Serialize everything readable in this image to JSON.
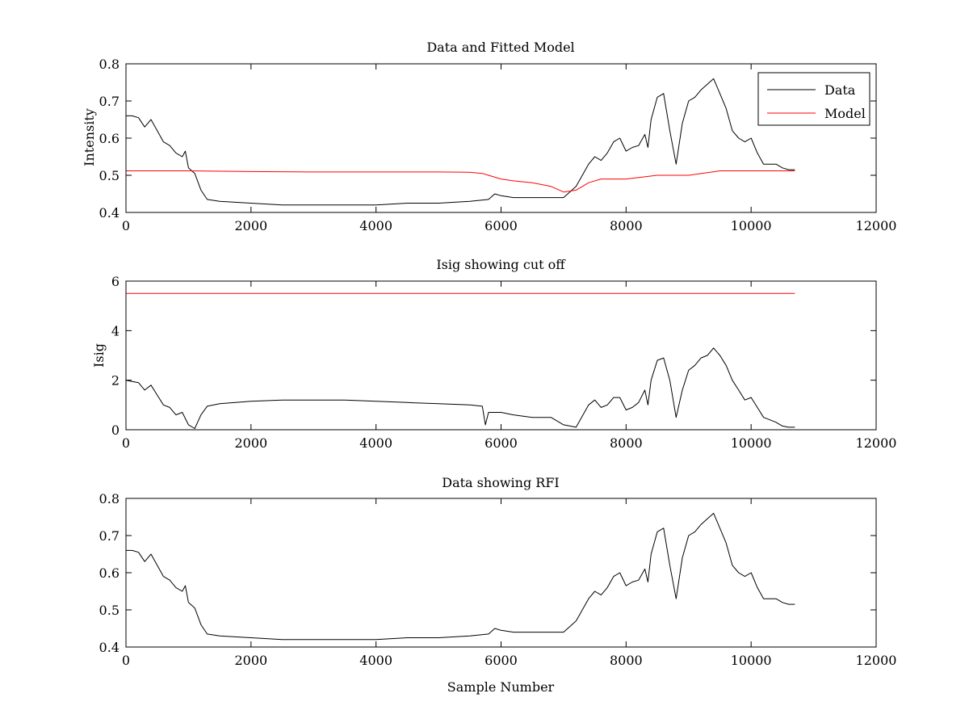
{
  "chart_data": [
    {
      "type": "line",
      "title": "Data and Fitted Model",
      "xlabel": "",
      "ylabel": "Intensity",
      "xlim": [
        0,
        12000
      ],
      "ylim": [
        0.4,
        0.8
      ],
      "xticks": [
        0,
        2000,
        4000,
        6000,
        8000,
        10000,
        12000
      ],
      "yticks": [
        0.4,
        0.5,
        0.6,
        0.7,
        0.8
      ],
      "xtick_labels": [
        "0",
        "2000",
        "4000",
        "6000",
        "8000",
        "10000",
        "12000"
      ],
      "ytick_labels": [
        "0.4",
        "0.5",
        "0.6",
        "0.7",
        "0.8"
      ],
      "legend": {
        "placement": "top-right",
        "entries": [
          "Data",
          "Model"
        ]
      },
      "series": [
        {
          "name": "Data",
          "color": "#000000",
          "x": [
            0,
            100,
            200,
            300,
            400,
            500,
            600,
            700,
            800,
            900,
            950,
            1000,
            1100,
            1200,
            1300,
            1500,
            2000,
            2500,
            3000,
            3500,
            4000,
            4500,
            5000,
            5500,
            5800,
            5900,
            6000,
            6200,
            6500,
            7000,
            7200,
            7400,
            7500,
            7600,
            7700,
            7800,
            7900,
            8000,
            8100,
            8200,
            8300,
            8350,
            8400,
            8500,
            8600,
            8700,
            8800,
            8900,
            9000,
            9100,
            9200,
            9300,
            9400,
            9500,
            9600,
            9700,
            9800,
            9900,
            10000,
            10100,
            10200,
            10300,
            10400,
            10500,
            10600,
            10700
          ],
          "y": [
            0.66,
            0.66,
            0.655,
            0.63,
            0.65,
            0.62,
            0.59,
            0.58,
            0.56,
            0.55,
            0.565,
            0.52,
            0.505,
            0.46,
            0.435,
            0.43,
            0.425,
            0.42,
            0.42,
            0.42,
            0.42,
            0.425,
            0.425,
            0.43,
            0.435,
            0.45,
            0.445,
            0.44,
            0.44,
            0.44,
            0.47,
            0.53,
            0.55,
            0.54,
            0.56,
            0.59,
            0.6,
            0.565,
            0.575,
            0.58,
            0.61,
            0.575,
            0.65,
            0.71,
            0.72,
            0.62,
            0.53,
            0.64,
            0.7,
            0.71,
            0.73,
            0.745,
            0.76,
            0.72,
            0.68,
            0.62,
            0.6,
            0.59,
            0.6,
            0.56,
            0.53,
            0.53,
            0.53,
            0.52,
            0.515,
            0.515
          ]
        },
        {
          "name": "Model",
          "color": "#ff0000",
          "x": [
            0,
            1000,
            2000,
            3000,
            4000,
            4800,
            5000,
            5500,
            5700,
            5800,
            6000,
            6200,
            6500,
            6800,
            7000,
            7200,
            7400,
            7600,
            8000,
            8500,
            9000,
            9500,
            10000,
            10700
          ],
          "y": [
            0.512,
            0.512,
            0.51,
            0.509,
            0.509,
            0.509,
            0.509,
            0.508,
            0.505,
            0.5,
            0.49,
            0.485,
            0.48,
            0.47,
            0.455,
            0.46,
            0.48,
            0.49,
            0.49,
            0.5,
            0.5,
            0.512,
            0.512,
            0.512
          ]
        }
      ]
    },
    {
      "type": "line",
      "title": "Isig showing cut off",
      "xlabel": "",
      "ylabel": "Isig",
      "xlim": [
        0,
        12000
      ],
      "ylim": [
        0,
        6
      ],
      "xticks": [
        0,
        2000,
        4000,
        6000,
        8000,
        10000,
        12000
      ],
      "yticks": [
        0,
        2,
        4,
        6
      ],
      "xtick_labels": [
        "0",
        "2000",
        "4000",
        "6000",
        "8000",
        "10000",
        "12000"
      ],
      "ytick_labels": [
        "0",
        "2",
        "4",
        "6"
      ],
      "series": [
        {
          "color": "#000000",
          "x": [
            0,
            100,
            200,
            300,
            400,
            500,
            600,
            700,
            800,
            900,
            1000,
            1100,
            1200,
            1300,
            1500,
            2000,
            2500,
            3000,
            3500,
            4000,
            4500,
            5000,
            5500,
            5700,
            5750,
            5800,
            6000,
            6200,
            6500,
            6800,
            7000,
            7100,
            7200,
            7400,
            7500,
            7600,
            7700,
            7800,
            7900,
            8000,
            8100,
            8200,
            8300,
            8350,
            8400,
            8500,
            8600,
            8700,
            8800,
            8900,
            9000,
            9100,
            9200,
            9300,
            9400,
            9500,
            9600,
            9700,
            9800,
            9900,
            10000,
            10100,
            10200,
            10300,
            10400,
            10500,
            10600,
            10700
          ],
          "y": [
            2.0,
            1.95,
            1.9,
            1.6,
            1.8,
            1.4,
            1.0,
            0.9,
            0.6,
            0.7,
            0.2,
            0.05,
            0.6,
            0.95,
            1.05,
            1.15,
            1.2,
            1.2,
            1.2,
            1.15,
            1.1,
            1.05,
            1.0,
            0.95,
            0.2,
            0.7,
            0.7,
            0.6,
            0.5,
            0.5,
            0.2,
            0.15,
            0.1,
            1.0,
            1.2,
            0.9,
            1.0,
            1.3,
            1.3,
            0.8,
            0.9,
            1.1,
            1.6,
            1.0,
            2.0,
            2.8,
            2.9,
            2.0,
            0.5,
            1.6,
            2.4,
            2.6,
            2.9,
            3.0,
            3.3,
            3.0,
            2.6,
            2.0,
            1.6,
            1.2,
            1.3,
            0.9,
            0.5,
            0.4,
            0.3,
            0.15,
            0.1,
            0.1
          ]
        },
        {
          "color": "#ff0000",
          "x": [
            0,
            10700
          ],
          "y": [
            5.5,
            5.5
          ]
        }
      ]
    },
    {
      "type": "line",
      "title": "Data showing RFI",
      "xlabel": "Sample Number",
      "ylabel": "",
      "xlim": [
        0,
        12000
      ],
      "ylim": [
        0.4,
        0.8
      ],
      "xticks": [
        0,
        2000,
        4000,
        6000,
        8000,
        10000,
        12000
      ],
      "yticks": [
        0.4,
        0.5,
        0.6,
        0.7,
        0.8
      ],
      "xtick_labels": [
        "0",
        "2000",
        "4000",
        "6000",
        "8000",
        "10000",
        "12000"
      ],
      "ytick_labels": [
        "0.4",
        "0.5",
        "0.6",
        "0.7",
        "0.8"
      ],
      "series": [
        {
          "color": "#000000",
          "x": [
            0,
            100,
            200,
            300,
            400,
            500,
            600,
            700,
            800,
            900,
            950,
            1000,
            1100,
            1200,
            1300,
            1500,
            2000,
            2500,
            3000,
            3500,
            4000,
            4500,
            5000,
            5500,
            5800,
            5900,
            6000,
            6200,
            6500,
            7000,
            7200,
            7400,
            7500,
            7600,
            7700,
            7800,
            7900,
            8000,
            8100,
            8200,
            8300,
            8350,
            8400,
            8500,
            8600,
            8700,
            8800,
            8900,
            9000,
            9100,
            9200,
            9300,
            9400,
            9500,
            9600,
            9700,
            9800,
            9900,
            10000,
            10100,
            10200,
            10300,
            10400,
            10500,
            10600,
            10700
          ],
          "y": [
            0.66,
            0.66,
            0.655,
            0.63,
            0.65,
            0.62,
            0.59,
            0.58,
            0.56,
            0.55,
            0.565,
            0.52,
            0.505,
            0.46,
            0.435,
            0.43,
            0.425,
            0.42,
            0.42,
            0.42,
            0.42,
            0.425,
            0.425,
            0.43,
            0.435,
            0.45,
            0.445,
            0.44,
            0.44,
            0.44,
            0.47,
            0.53,
            0.55,
            0.54,
            0.56,
            0.59,
            0.6,
            0.565,
            0.575,
            0.58,
            0.61,
            0.575,
            0.65,
            0.71,
            0.72,
            0.62,
            0.53,
            0.64,
            0.7,
            0.71,
            0.73,
            0.745,
            0.76,
            0.72,
            0.68,
            0.62,
            0.6,
            0.59,
            0.6,
            0.56,
            0.53,
            0.53,
            0.53,
            0.52,
            0.515,
            0.515
          ]
        }
      ]
    }
  ]
}
